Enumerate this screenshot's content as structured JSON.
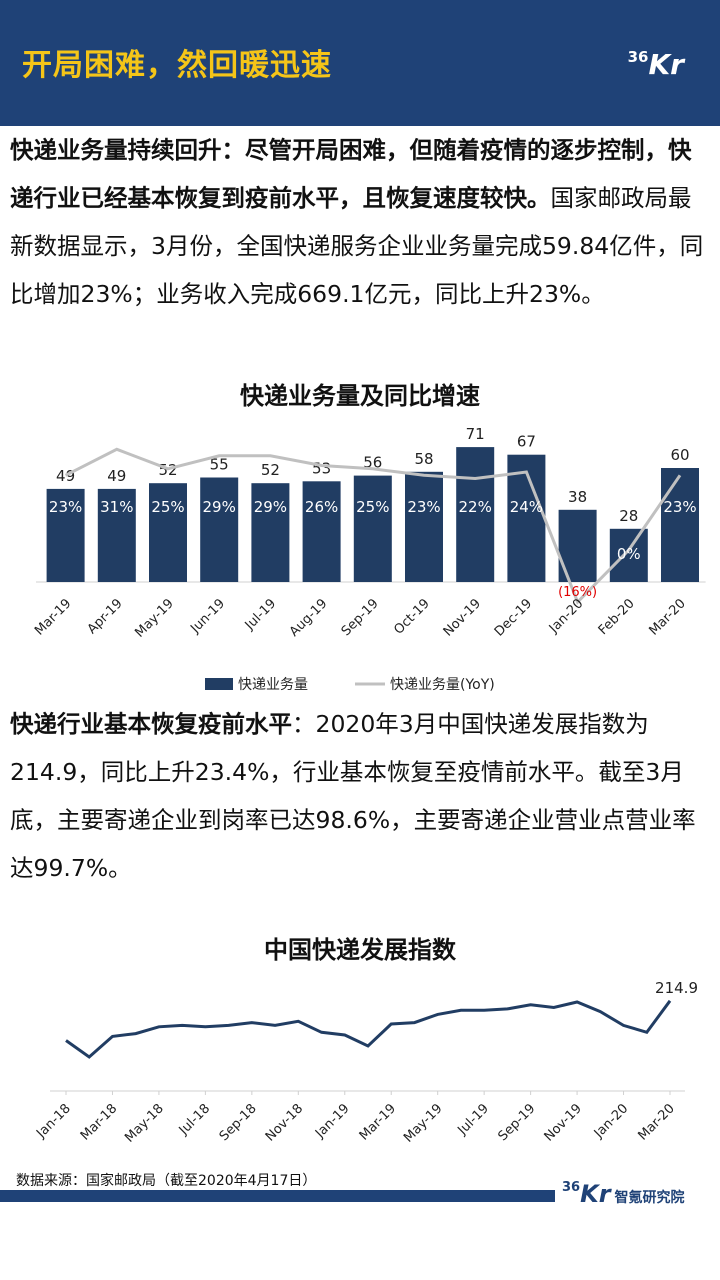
{
  "header": {
    "title": "开局困难，然回暖迅速"
  },
  "logo": {
    "num": "36",
    "letters": "Kr"
  },
  "para1": {
    "lead": "快递业务量持续回升：尽管开局困难，但随着疫情的逐步控制，快递行业已经基本恢复到疫前水平，且恢复速度较快。",
    "body": "国家邮政局最新数据显示，3月份，全国快递服务企业业务量完成59.84亿件，同比增加23%；业务收入完成669.1亿元，同比上升23%。"
  },
  "para2": {
    "lead": "快递行业基本恢复疫前水平",
    "body": "：2020年3月中国快递发展指数为214.9，同比上升23.4%，行业基本恢复至疫情前水平。截至3月底，主要寄递企业到岗率已达98.6%，主要寄递企业营业点营业率达99.7%。"
  },
  "chart_data": [
    {
      "type": "bar",
      "title": "快递业务量及同比增速",
      "categories": [
        "Mar-19",
        "Apr-19",
        "May-19",
        "Jun-19",
        "Jul-19",
        "Aug-19",
        "Sep-19",
        "Oct-19",
        "Nov-19",
        "Dec-19",
        "Jan-20",
        "Feb-20",
        "Mar-20"
      ],
      "series": [
        {
          "name": "快递业务量",
          "values": [
            49,
            49,
            52,
            55,
            52,
            53,
            56,
            58,
            71,
            67,
            38,
            28,
            60
          ],
          "color": "#213d63"
        },
        {
          "name": "快递业务量(YoY)",
          "type": "line",
          "values": [
            23,
            31,
            25,
            29,
            29,
            26,
            25,
            23,
            22,
            24,
            -16,
            0,
            23
          ],
          "labels": [
            "23%",
            "31%",
            "25%",
            "29%",
            "29%",
            "26%",
            "25%",
            "23%",
            "22%",
            "24%",
            "(16%)",
            "0%",
            "23%"
          ],
          "color": "#c0c0c0"
        }
      ],
      "legend": "bottom",
      "ylim": [
        0,
        80
      ],
      "yoy_lim": [
        -20,
        40
      ]
    },
    {
      "type": "line",
      "title": "中国快递发展指数",
      "categories": [
        "Jan-18",
        "Feb-18",
        "Mar-18",
        "Apr-18",
        "May-18",
        "Jun-18",
        "Jul-18",
        "Aug-18",
        "Sep-18",
        "Oct-18",
        "Nov-18",
        "Dec-18",
        "Jan-19",
        "Feb-19",
        "Mar-19",
        "Apr-19",
        "May-19",
        "Jun-19",
        "Jul-19",
        "Aug-19",
        "Sep-19",
        "Oct-19",
        "Nov-19",
        "Dec-19",
        "Jan-20",
        "Feb-20",
        "Mar-20"
      ],
      "tick_labels": [
        "Jan-18",
        "Mar-18",
        "May-18",
        "Jul-18",
        "Sep-18",
        "Nov-18",
        "Jan-19",
        "Mar-19",
        "May-19",
        "Jul-19",
        "Sep-19",
        "Nov-19",
        "Jan-20",
        "Mar-20"
      ],
      "values": [
        186,
        174,
        189,
        191,
        196,
        197,
        196,
        197,
        199,
        197,
        200,
        192,
        190,
        182,
        198,
        199,
        205,
        208,
        208,
        209,
        212,
        210,
        214,
        207,
        197,
        192,
        214.9
      ],
      "end_label": "214.9",
      "ylim": [
        150,
        230
      ],
      "color": "#213d63"
    }
  ],
  "source": "数据来源：国家邮政局（截至2020年4月17日）",
  "footer_logo": {
    "num": "36",
    "letters": "Kr",
    "institute": "智氪研究院"
  }
}
